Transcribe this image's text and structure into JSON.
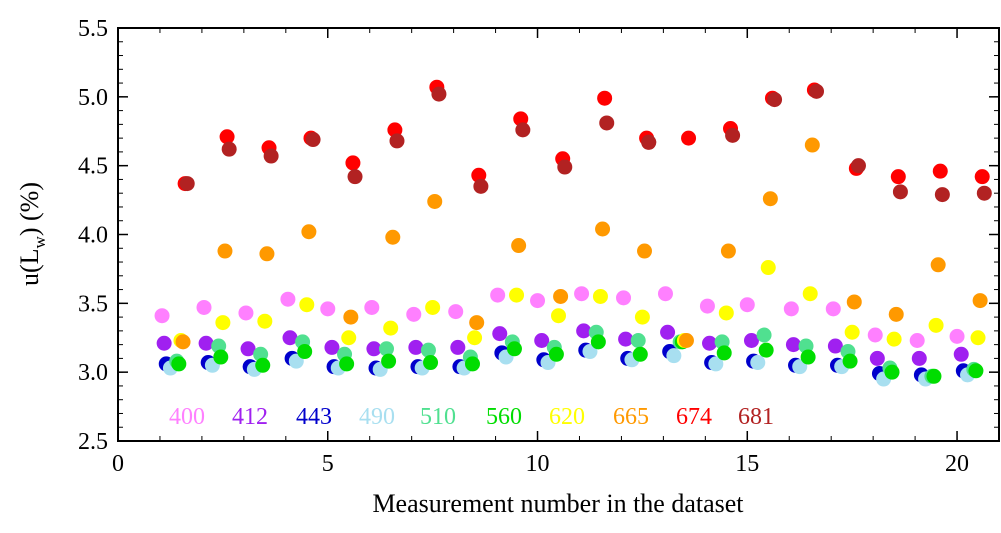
{
  "chart_data": {
    "type": "scatter",
    "xlabel": "Measurement number in the dataset",
    "ylabel_main": "u(L",
    "ylabel_sub": "w",
    "ylabel_tail": ") (%)",
    "xlim": [
      0,
      21
    ],
    "ylim": [
      2.5,
      5.5
    ],
    "xticks": [
      0,
      5,
      10,
      15,
      20
    ],
    "xtick_labels": [
      "0",
      "5",
      "10",
      "15",
      "20"
    ],
    "yticks": [
      2.5,
      3.0,
      3.5,
      4.0,
      4.5,
      5.0,
      5.5
    ],
    "ytick_labels": [
      "2.5",
      "3.0",
      "3.5",
      "4.0",
      "4.5",
      "5.0",
      "5.5"
    ],
    "grid": false,
    "legend_position": "bottom-left",
    "series": [
      {
        "name": "400",
        "color": "#ff80ff",
        "x": [
          1.05,
          2.05,
          3.05,
          4.05,
          5.0,
          6.05,
          7.05,
          8.05,
          9.05,
          10.0,
          11.05,
          12.05,
          13.05,
          14.05,
          15.0,
          16.05,
          17.05,
          18.05,
          19.05,
          20.0
        ],
        "y": [
          3.41,
          3.47,
          3.43,
          3.53,
          3.46,
          3.47,
          3.42,
          3.44,
          3.56,
          3.52,
          3.57,
          3.54,
          3.57,
          3.48,
          3.49,
          3.46,
          3.46,
          3.27,
          3.23,
          3.26
        ]
      },
      {
        "name": "412",
        "color": "#a020f0",
        "x": [
          1.1,
          2.1,
          3.1,
          4.1,
          5.1,
          6.1,
          7.1,
          8.1,
          9.1,
          10.1,
          11.1,
          12.1,
          13.1,
          14.1,
          15.1,
          16.1,
          17.1,
          18.1,
          19.1,
          20.1
        ],
        "y": [
          3.21,
          3.21,
          3.17,
          3.25,
          3.18,
          3.17,
          3.18,
          3.18,
          3.28,
          3.23,
          3.3,
          3.24,
          3.29,
          3.21,
          3.23,
          3.2,
          3.19,
          3.1,
          3.1,
          3.13
        ]
      },
      {
        "name": "443",
        "color": "#0000cc",
        "x": [
          1.15,
          2.15,
          3.15,
          4.15,
          5.15,
          6.15,
          7.15,
          8.15,
          9.15,
          10.15,
          11.15,
          12.15,
          13.15,
          14.15,
          15.15,
          16.15,
          17.15,
          18.15,
          19.15,
          20.15
        ],
        "y": [
          3.06,
          3.07,
          3.04,
          3.1,
          3.04,
          3.03,
          3.04,
          3.04,
          3.14,
          3.09,
          3.16,
          3.1,
          3.15,
          3.07,
          3.08,
          3.05,
          3.05,
          2.99,
          2.98,
          3.01
        ]
      },
      {
        "name": "490",
        "color": "#a8dff0",
        "x": [
          1.25,
          2.25,
          3.25,
          4.25,
          5.25,
          6.25,
          7.25,
          8.25,
          9.25,
          10.25,
          11.25,
          12.25,
          13.25,
          14.25,
          15.25,
          16.25,
          17.25,
          18.25,
          19.25,
          20.25
        ],
        "y": [
          3.03,
          3.05,
          3.02,
          3.08,
          3.03,
          3.02,
          3.03,
          3.03,
          3.11,
          3.07,
          3.15,
          3.09,
          3.12,
          3.06,
          3.07,
          3.04,
          3.04,
          2.95,
          2.95,
          2.98
        ]
      },
      {
        "name": "510",
        "color": "#50e090",
        "x": [
          1.4,
          2.4,
          3.4,
          4.4,
          5.4,
          6.4,
          7.4,
          8.4,
          9.4,
          10.4,
          11.4,
          12.4,
          13.4,
          14.4,
          15.4,
          16.4,
          17.4,
          18.4,
          19.4,
          20.4
        ],
        "y": [
          3.08,
          3.19,
          3.13,
          3.22,
          3.13,
          3.17,
          3.16,
          3.11,
          3.22,
          3.18,
          3.29,
          3.23,
          3.22,
          3.22,
          3.27,
          3.19,
          3.15,
          3.03,
          2.97,
          3.02
        ]
      },
      {
        "name": "560",
        "color": "#00dd00",
        "x": [
          1.45,
          2.45,
          3.45,
          4.45,
          5.45,
          6.45,
          7.45,
          8.45,
          9.45,
          10.45,
          11.45,
          12.45,
          13.45,
          14.45,
          15.45,
          16.45,
          17.45,
          18.45,
          19.45,
          20.45
        ],
        "y": [
          3.06,
          3.11,
          3.05,
          3.15,
          3.06,
          3.08,
          3.07,
          3.06,
          3.17,
          3.13,
          3.22,
          3.13,
          3.22,
          3.14,
          3.16,
          3.11,
          3.08,
          3.0,
          2.97,
          3.01
        ]
      },
      {
        "name": "620",
        "color": "#ffff00",
        "x": [
          1.5,
          2.5,
          3.5,
          4.5,
          5.5,
          6.5,
          7.5,
          8.5,
          9.5,
          10.5,
          11.5,
          12.5,
          13.5,
          14.5,
          15.5,
          16.5,
          17.5,
          18.5,
          19.5,
          20.5
        ],
        "y": [
          3.23,
          3.36,
          3.37,
          3.49,
          3.25,
          3.32,
          3.47,
          3.25,
          3.56,
          3.41,
          3.55,
          3.4,
          3.23,
          3.43,
          3.76,
          3.57,
          3.29,
          3.24,
          3.34,
          3.25
        ]
      },
      {
        "name": "665",
        "color": "#ff9900",
        "x": [
          1.55,
          2.55,
          3.55,
          4.55,
          5.55,
          6.55,
          7.55,
          8.55,
          9.55,
          10.55,
          11.55,
          12.55,
          13.55,
          14.55,
          15.55,
          16.55,
          17.55,
          18.55,
          19.55,
          20.55
        ],
        "y": [
          3.22,
          3.88,
          3.86,
          4.02,
          3.4,
          3.98,
          4.24,
          3.36,
          3.92,
          3.55,
          4.04,
          3.88,
          3.23,
          3.88,
          4.26,
          4.65,
          3.51,
          3.42,
          3.78,
          3.52
        ]
      },
      {
        "name": "674",
        "color": "#ff0000",
        "x": [
          1.6,
          2.6,
          3.6,
          4.6,
          5.6,
          6.6,
          7.6,
          8.6,
          9.6,
          10.6,
          11.6,
          12.6,
          13.6,
          14.6,
          15.6,
          16.6,
          17.6,
          18.6,
          19.6,
          20.6
        ],
        "y": [
          4.37,
          4.71,
          4.63,
          4.7,
          4.52,
          4.76,
          5.07,
          4.43,
          4.84,
          4.55,
          4.99,
          4.7,
          4.7,
          4.77,
          4.99,
          5.05,
          4.48,
          4.42,
          4.46,
          4.42
        ]
      },
      {
        "name": "681",
        "color": "#b22222",
        "x": [
          1.65,
          2.65,
          3.65,
          4.65,
          5.65,
          6.65,
          7.65,
          8.65,
          9.65,
          10.65,
          11.65,
          12.65,
          12.65,
          14.65,
          15.65,
          16.65,
          17.65,
          18.65,
          19.65,
          20.65
        ],
        "y": [
          4.37,
          4.62,
          4.57,
          4.69,
          4.42,
          4.68,
          5.02,
          4.35,
          4.76,
          4.49,
          4.81,
          4.67,
          4.67,
          4.72,
          4.98,
          5.04,
          4.5,
          4.31,
          4.29,
          4.3
        ]
      }
    ]
  }
}
